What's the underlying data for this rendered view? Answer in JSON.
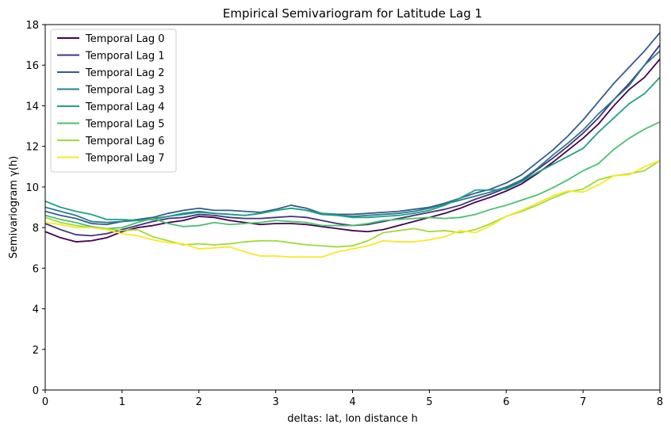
{
  "chart_data": {
    "type": "line",
    "title": "Empirical Semivariogram for Latitude Lag 1",
    "xlabel": "deltas: lat, lon distance h",
    "ylabel": "Semivariogram γ(h)",
    "xlim": [
      0,
      8
    ],
    "ylim": [
      0,
      18
    ],
    "xticks": [
      0,
      1,
      2,
      3,
      4,
      5,
      6,
      7,
      8
    ],
    "yticks": [
      0,
      2,
      4,
      6,
      8,
      10,
      12,
      14,
      16,
      18
    ],
    "grid": false,
    "legend_position": "upper-left",
    "x": [
      0,
      0.2,
      0.4,
      0.6,
      0.8,
      1.0,
      1.2,
      1.4,
      1.6,
      1.8,
      2.0,
      2.2,
      2.4,
      2.6,
      2.8,
      3.0,
      3.2,
      3.4,
      3.6,
      3.8,
      4.0,
      4.2,
      4.4,
      4.6,
      4.8,
      5.0,
      5.2,
      5.4,
      5.6,
      5.8,
      6.0,
      6.2,
      6.4,
      6.6,
      6.8,
      7.0,
      7.2,
      7.4,
      7.6,
      7.8,
      8.0
    ],
    "series": [
      {
        "name": "Temporal Lag 0",
        "color": "#440154",
        "values": [
          7.8,
          7.5,
          7.3,
          7.35,
          7.5,
          7.8,
          8.0,
          8.1,
          8.25,
          8.35,
          8.55,
          8.5,
          8.35,
          8.25,
          8.15,
          8.2,
          8.2,
          8.15,
          8.05,
          7.95,
          7.85,
          7.8,
          7.9,
          8.1,
          8.3,
          8.5,
          8.7,
          8.95,
          9.25,
          9.5,
          9.8,
          10.15,
          10.65,
          11.2,
          11.8,
          12.4,
          13.1,
          14.0,
          14.8,
          15.4,
          16.3
        ]
      },
      {
        "name": "Temporal Lag 1",
        "color": "#46327e",
        "values": [
          8.2,
          7.9,
          7.65,
          7.6,
          7.7,
          7.9,
          8.1,
          8.3,
          8.45,
          8.5,
          8.65,
          8.6,
          8.5,
          8.45,
          8.45,
          8.5,
          8.55,
          8.5,
          8.35,
          8.2,
          8.1,
          8.15,
          8.3,
          8.45,
          8.6,
          8.75,
          8.9,
          9.1,
          9.4,
          9.65,
          9.95,
          10.3,
          10.85,
          11.4,
          12.0,
          12.65,
          13.4,
          14.3,
          15.1,
          16.0,
          17.0
        ]
      },
      {
        "name": "Temporal Lag 2",
        "color": "#365c8d",
        "values": [
          8.8,
          8.6,
          8.45,
          8.2,
          8.15,
          8.3,
          8.4,
          8.5,
          8.7,
          8.85,
          8.95,
          8.85,
          8.85,
          8.8,
          8.75,
          8.9,
          9.1,
          8.95,
          8.7,
          8.65,
          8.65,
          8.7,
          8.75,
          8.8,
          8.9,
          9.0,
          9.2,
          9.45,
          9.7,
          9.9,
          10.2,
          10.6,
          11.2,
          11.8,
          12.5,
          13.3,
          14.2,
          15.1,
          15.9,
          16.7,
          17.6
        ]
      },
      {
        "name": "Temporal Lag 3",
        "color": "#277f8e",
        "values": [
          9.0,
          8.8,
          8.6,
          8.3,
          8.25,
          8.3,
          8.35,
          8.45,
          8.55,
          8.7,
          8.8,
          8.7,
          8.65,
          8.6,
          8.7,
          8.85,
          8.95,
          8.85,
          8.65,
          8.6,
          8.55,
          8.6,
          8.65,
          8.7,
          8.8,
          8.95,
          9.15,
          9.35,
          9.55,
          9.75,
          10.0,
          10.35,
          10.9,
          11.55,
          12.15,
          12.8,
          13.6,
          14.3,
          15.0,
          16.0,
          16.7
        ]
      },
      {
        "name": "Temporal Lag 4",
        "color": "#1fa187",
        "values": [
          9.3,
          9.0,
          8.8,
          8.65,
          8.4,
          8.4,
          8.35,
          8.4,
          8.55,
          8.65,
          8.75,
          8.7,
          8.65,
          8.6,
          8.7,
          8.85,
          8.95,
          8.85,
          8.7,
          8.6,
          8.5,
          8.5,
          8.55,
          8.6,
          8.7,
          8.85,
          9.1,
          9.45,
          9.85,
          9.85,
          9.9,
          10.25,
          10.7,
          11.1,
          11.5,
          11.9,
          12.7,
          13.4,
          14.1,
          14.6,
          15.4
        ]
      },
      {
        "name": "Temporal Lag 5",
        "color": "#4ac16d",
        "values": [
          8.6,
          8.4,
          8.25,
          8.05,
          7.95,
          8.0,
          8.25,
          8.45,
          8.2,
          8.05,
          8.1,
          8.25,
          8.15,
          8.2,
          8.25,
          8.35,
          8.3,
          8.25,
          8.1,
          8.1,
          8.1,
          8.2,
          8.35,
          8.4,
          8.45,
          8.5,
          8.45,
          8.5,
          8.65,
          8.9,
          9.1,
          9.35,
          9.6,
          9.95,
          10.35,
          10.8,
          11.15,
          11.85,
          12.4,
          12.85,
          13.2
        ]
      },
      {
        "name": "Temporal Lag 6",
        "color": "#a0da39",
        "values": [
          8.5,
          8.25,
          8.1,
          8.0,
          7.95,
          7.85,
          7.9,
          7.55,
          7.35,
          7.15,
          7.2,
          7.15,
          7.2,
          7.3,
          7.35,
          7.35,
          7.25,
          7.15,
          7.1,
          7.05,
          7.1,
          7.35,
          7.75,
          7.85,
          7.95,
          7.8,
          7.85,
          7.75,
          7.9,
          8.2,
          8.55,
          8.8,
          9.1,
          9.45,
          9.75,
          9.9,
          10.35,
          10.55,
          10.65,
          10.8,
          11.3
        ]
      },
      {
        "name": "Temporal Lag 7",
        "color": "#fde725",
        "values": [
          8.25,
          8.15,
          8.0,
          8.0,
          7.9,
          7.7,
          7.6,
          7.4,
          7.25,
          7.2,
          6.95,
          7.0,
          7.05,
          6.8,
          6.6,
          6.6,
          6.55,
          6.55,
          6.55,
          6.8,
          6.95,
          7.1,
          7.35,
          7.3,
          7.3,
          7.4,
          7.55,
          7.85,
          7.75,
          8.1,
          8.55,
          8.85,
          9.2,
          9.55,
          9.8,
          9.75,
          10.1,
          10.55,
          10.6,
          11.0,
          11.3
        ]
      }
    ]
  }
}
